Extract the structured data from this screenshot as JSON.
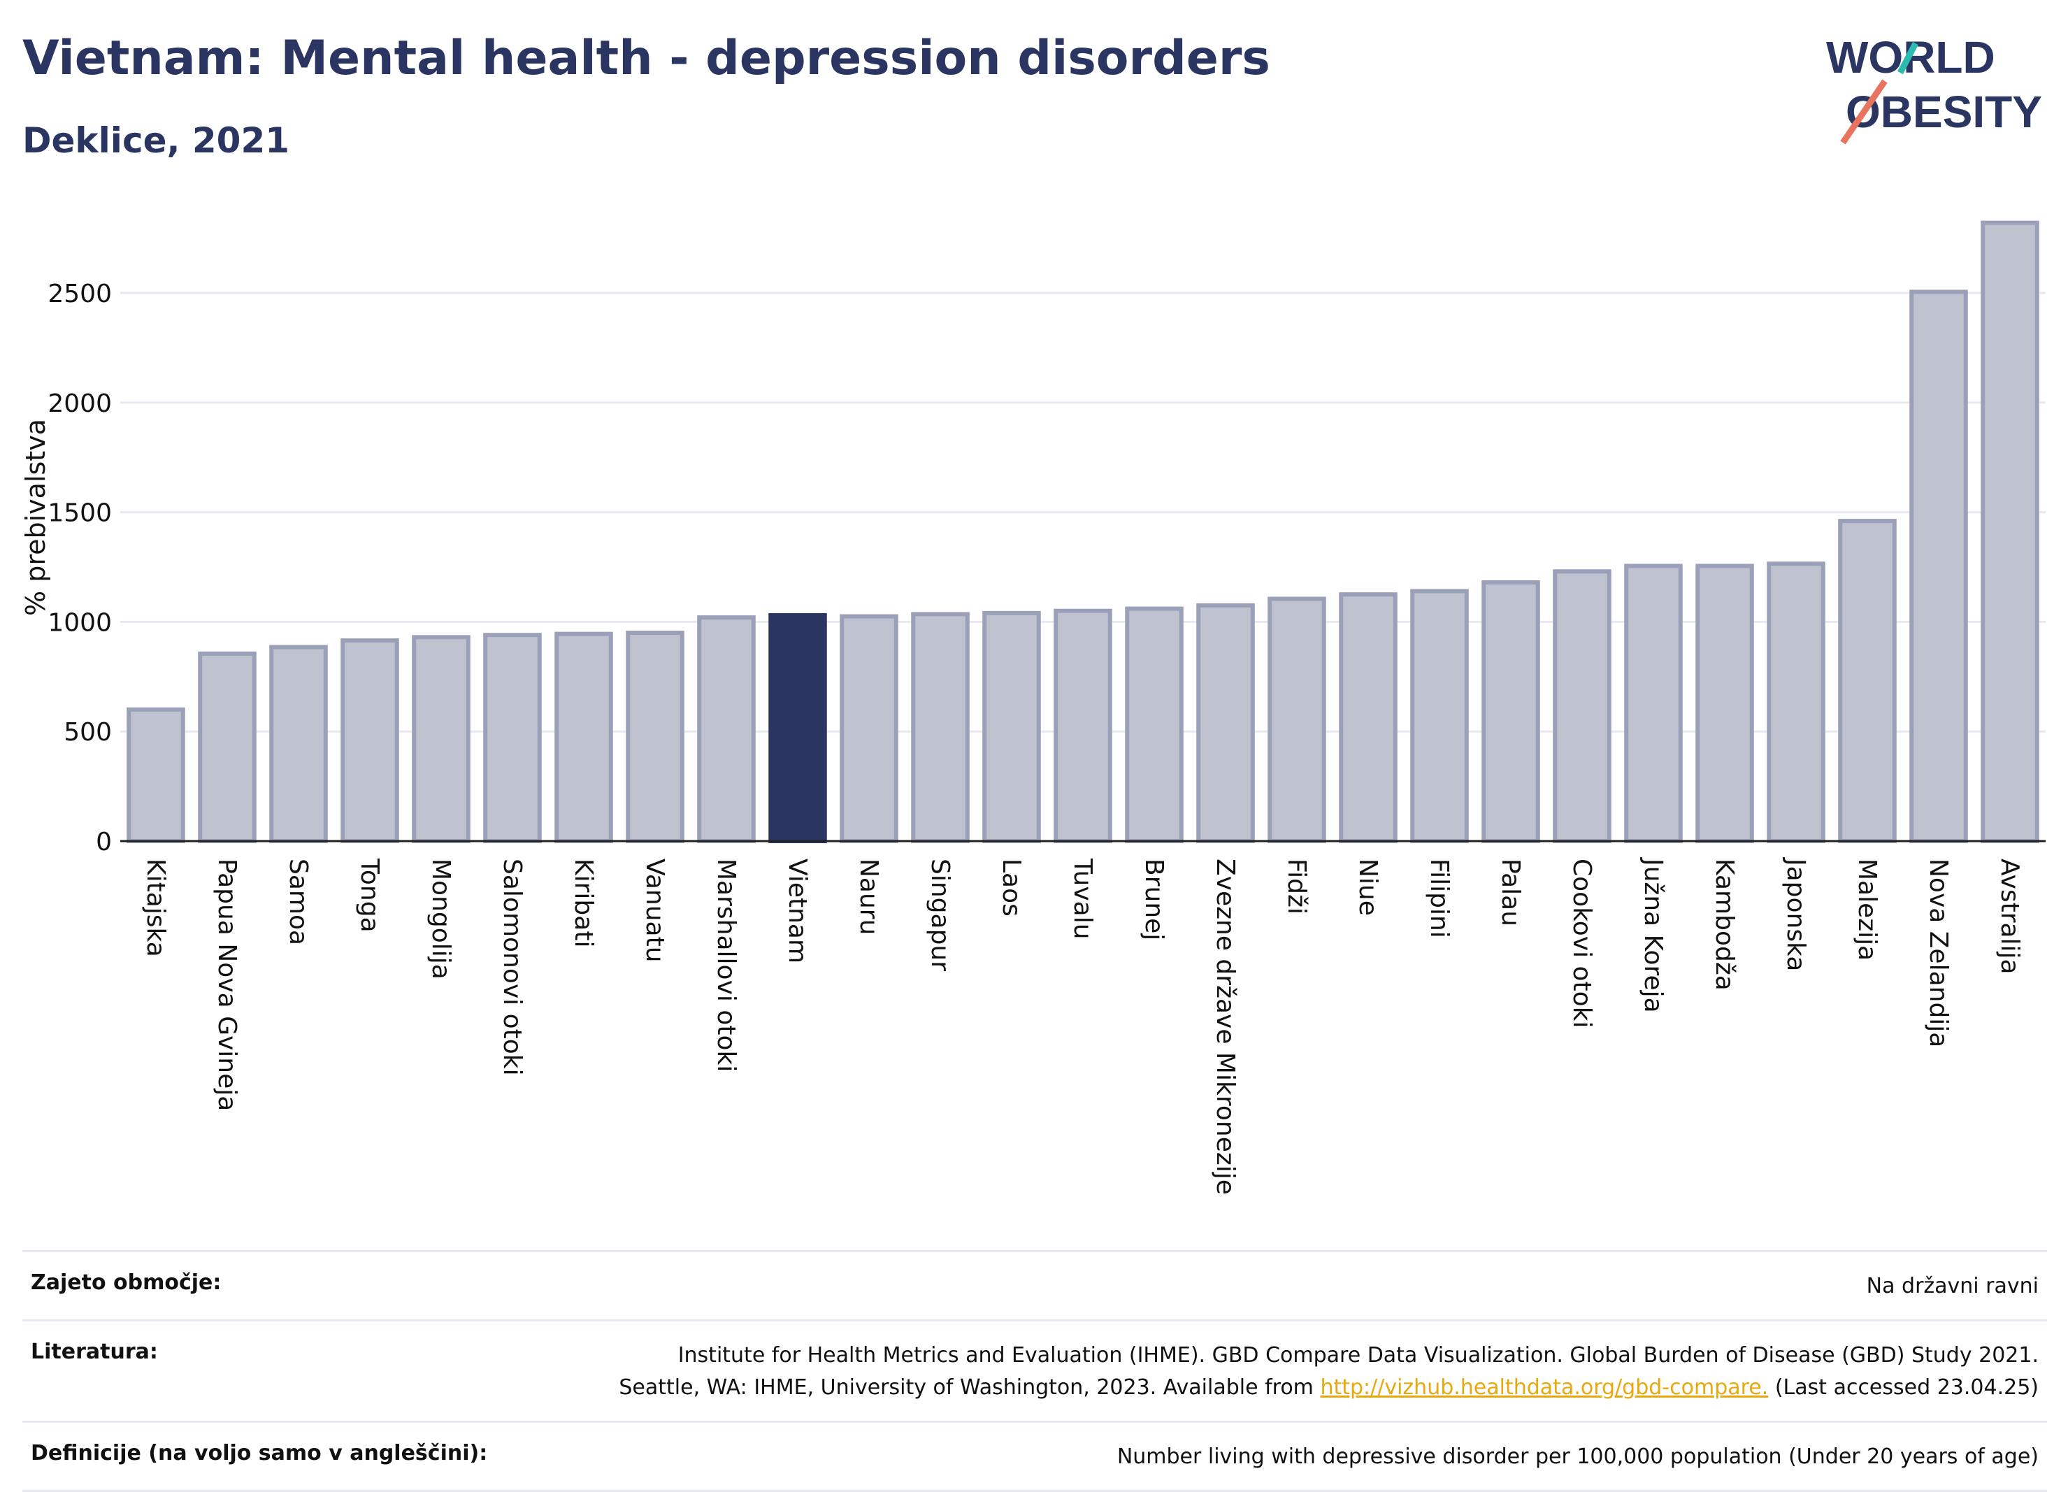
{
  "header": {
    "title": "Vietnam: Mental health - depression disorders",
    "subtitle": "Deklice, 2021"
  },
  "logo": {
    "line1": "WORLD",
    "line2": "OBESITY",
    "accent_teal": "#2bbbb0",
    "accent_red": "#e8735e"
  },
  "colors": {
    "bar": "#bfc3d0",
    "bar_stroke": "#9aa0b8",
    "highlight": "#2b3562",
    "grid": "#e6e9f2",
    "title": "#2b3562"
  },
  "chart_data": {
    "type": "bar",
    "ylabel": "% prebivalstva",
    "ylim": [
      0,
      2850
    ],
    "yticks": [
      0,
      500,
      1000,
      1500,
      2000,
      2500
    ],
    "grid": true,
    "highlight": "Vietnam",
    "categories": [
      "Kitajska",
      "Papua Nova Gvineja",
      "Samoa",
      "Tonga",
      "Mongolija",
      "Salomonovi otoki",
      "Kiribati",
      "Vanuatu",
      "Marshallovi otoki",
      "Vietnam",
      "Nauru",
      "Singapur",
      "Laos",
      "Tuvalu",
      "Brunej",
      "Zvezne države Mikronezije",
      "Fidži",
      "Niue",
      "Filipini",
      "Palau",
      "Cookovi otoki",
      "Južna Koreja",
      "Kambodža",
      "Japonska",
      "Malezija",
      "Nova Zelandija",
      "Avstralija"
    ],
    "values": [
      600,
      855,
      885,
      915,
      930,
      940,
      945,
      950,
      1020,
      1030,
      1025,
      1035,
      1040,
      1050,
      1060,
      1075,
      1105,
      1125,
      1140,
      1180,
      1230,
      1255,
      1255,
      1265,
      1460,
      2505,
      2820
    ]
  },
  "footer": {
    "rows": [
      {
        "label": "Zajeto območje:",
        "value": "Na državni ravni"
      },
      {
        "label": "Literatura:",
        "line1": "Institute for Health Metrics and Evaluation (IHME). GBD Compare Data Visualization. Global Burden of Disease (GBD) Study 2021.",
        "line2_prefix": "Seattle, WA: IHME, University of Washington, 2023. Available from ",
        "link": "http://vizhub.healthdata.org/gbd-compare.",
        "line2_suffix": " (Last accessed 23.04.25)"
      },
      {
        "label": "Definicije (na voljo samo v angleščini):",
        "value": "Number living with depressive disorder per 100,000 population (Under 20 years of age)"
      }
    ]
  }
}
